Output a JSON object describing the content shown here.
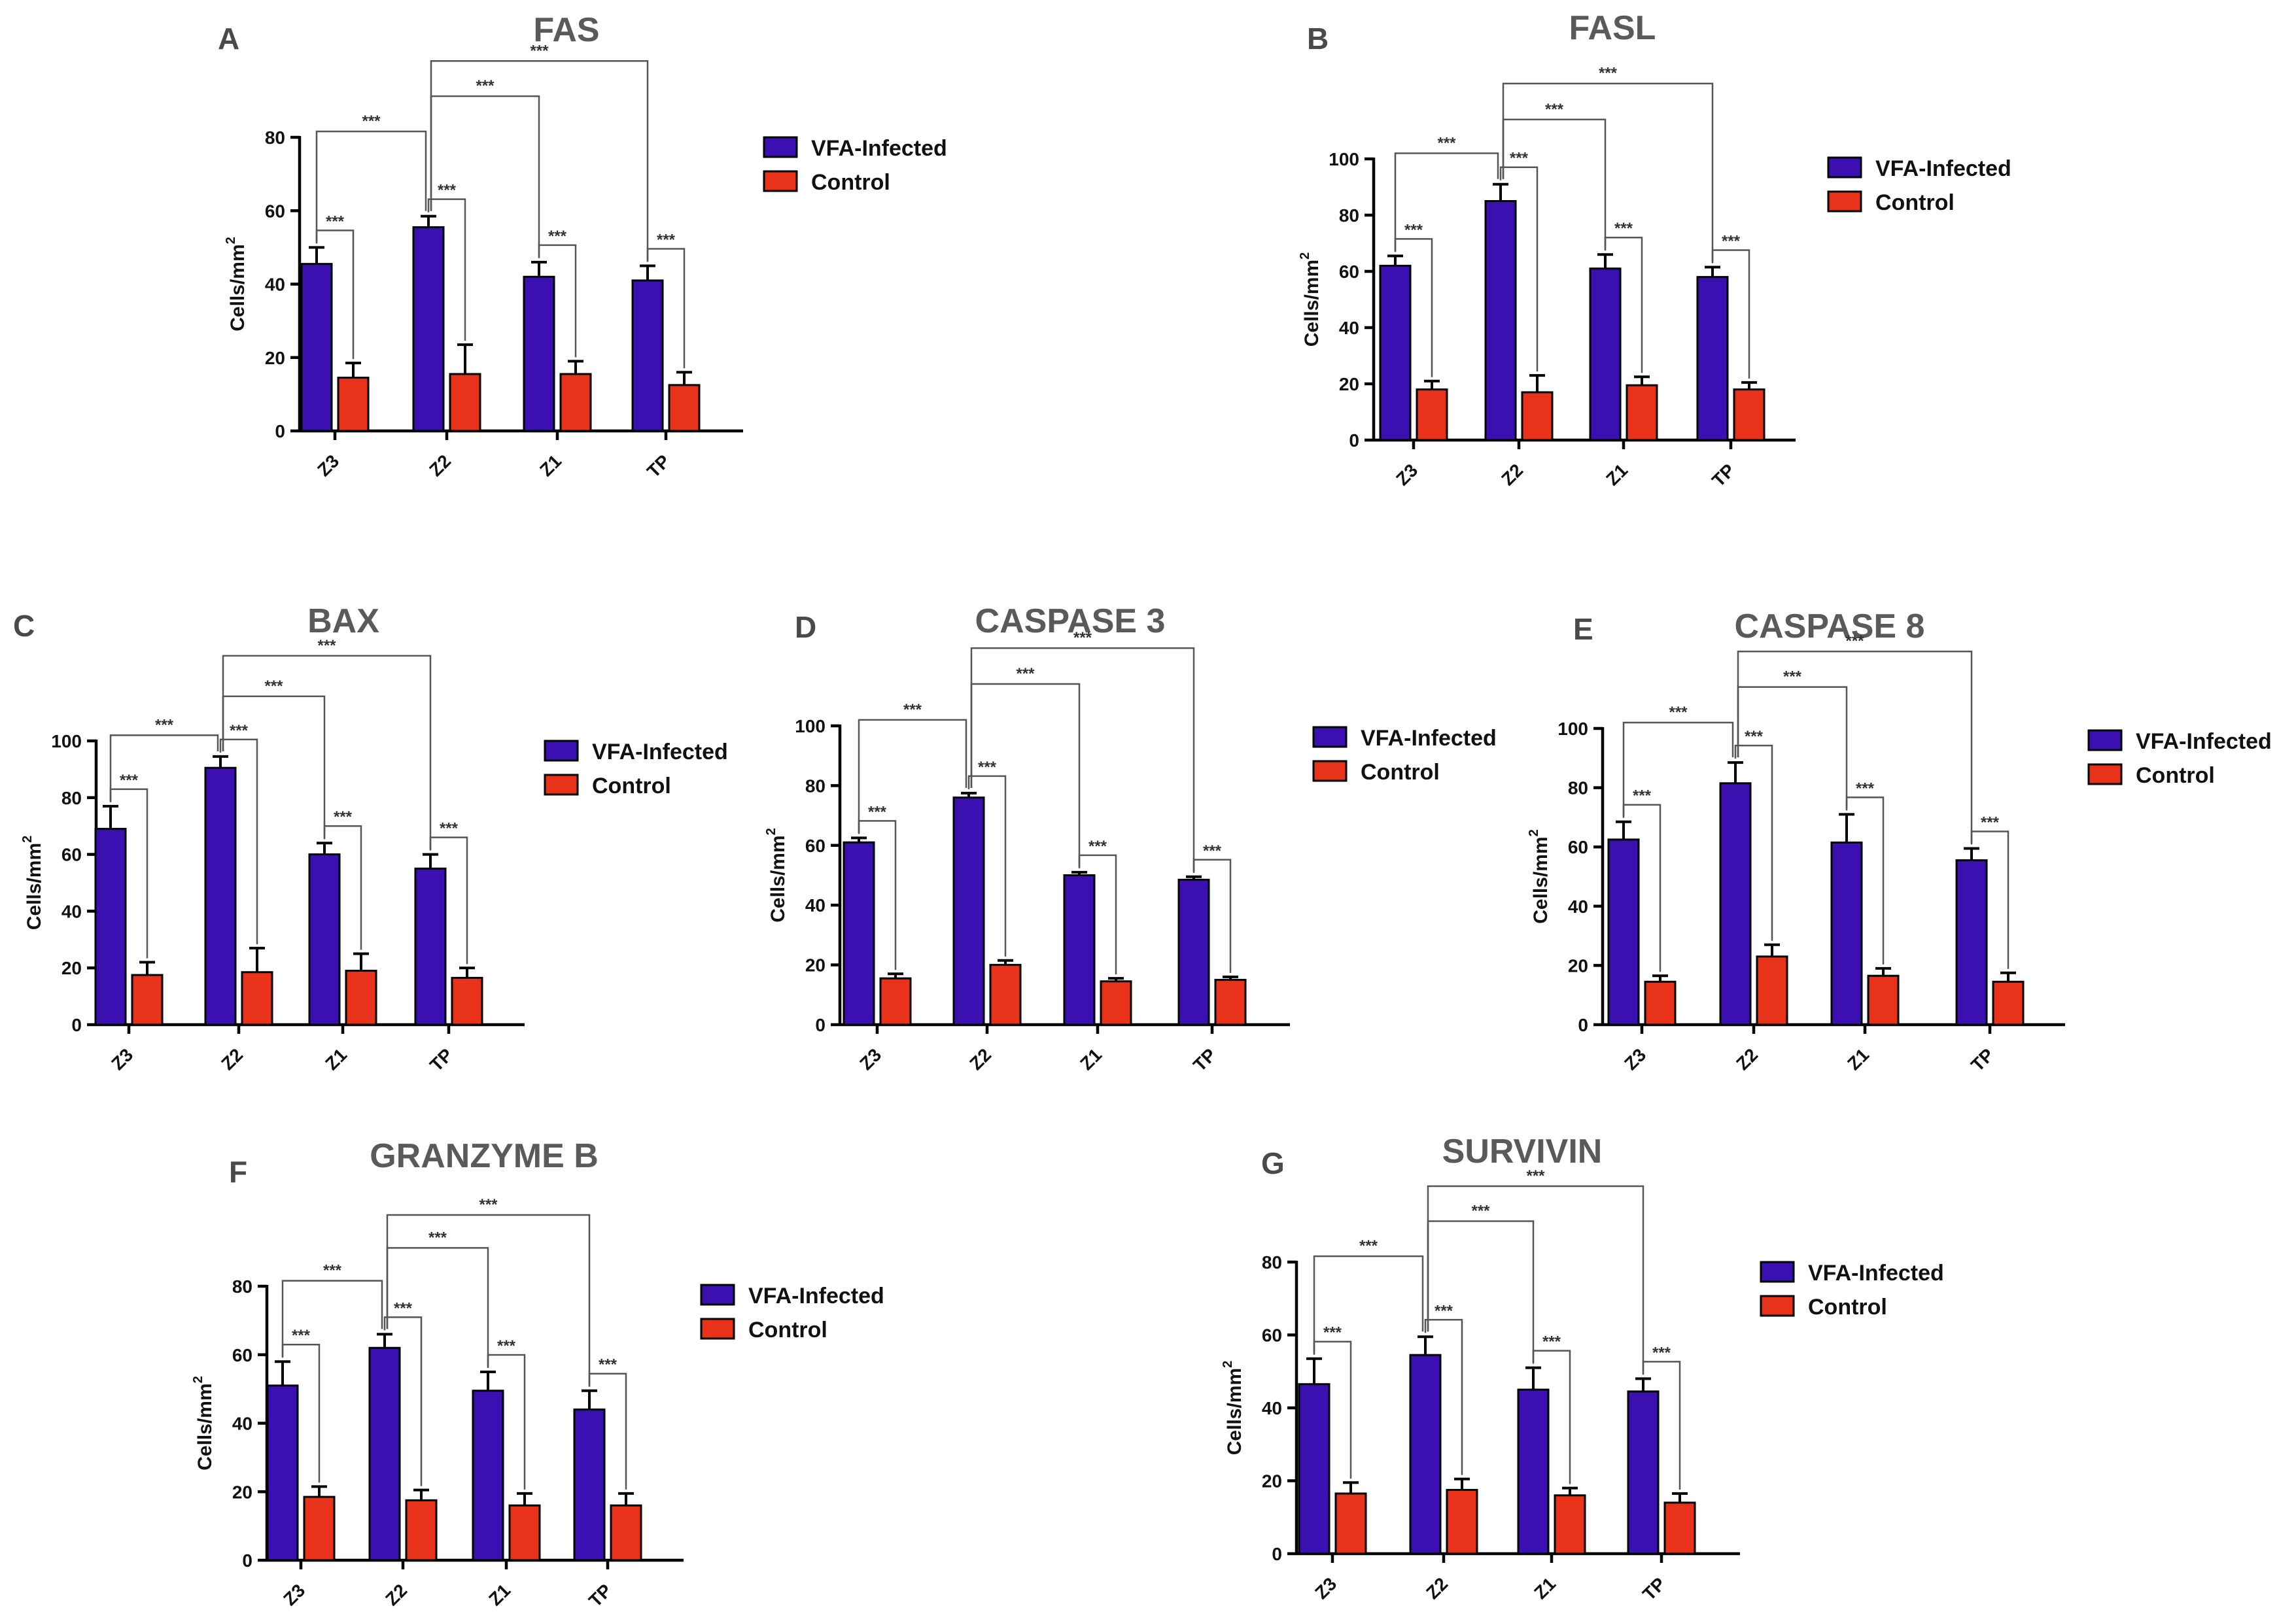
{
  "colors": {
    "infected": "#3b0fb0",
    "control": "#e8321a"
  },
  "legend": {
    "infected_label": "VFA-Infected",
    "control_label": "Control"
  },
  "chart_data": [
    {
      "id": "A",
      "letter": "A",
      "type": "bar",
      "title": "FAS",
      "ylabel": "Cells/mm",
      "ylabel_sup": "2",
      "ylim": [
        0,
        80
      ],
      "yticks": [
        0,
        20,
        40,
        60,
        80
      ],
      "categories": [
        "Z3",
        "Z2",
        "Z1",
        "TP"
      ],
      "series": [
        {
          "name": "VFA-Infected",
          "values": [
            45.5,
            55.5,
            42,
            41
          ],
          "errors": [
            4.5,
            3,
            4,
            4
          ]
        },
        {
          "name": "Control",
          "values": [
            14.5,
            15.5,
            15.5,
            12.5
          ],
          "errors": [
            4,
            8,
            3.5,
            3.5
          ]
        }
      ],
      "sig_pairs": [
        {
          "from": "Z3",
          "to": "Z2",
          "label": "***"
        },
        {
          "from": "Z2",
          "to": "Z1",
          "label": "***"
        },
        {
          "from": "Z2",
          "to": "TP",
          "label": "***"
        }
      ],
      "within_label": "***"
    },
    {
      "id": "B",
      "letter": "B",
      "type": "bar",
      "title": "FASL",
      "ylabel": "Cells/mm",
      "ylabel_sup": "2",
      "ylim": [
        0,
        100
      ],
      "yticks": [
        0,
        20,
        40,
        60,
        80,
        100
      ],
      "categories": [
        "Z3",
        "Z2",
        "Z1",
        "TP"
      ],
      "series": [
        {
          "name": "VFA-Infected",
          "values": [
            62,
            85,
            61,
            58
          ],
          "errors": [
            3.5,
            6,
            5,
            3.5
          ]
        },
        {
          "name": "Control",
          "values": [
            18,
            17,
            19.5,
            18
          ],
          "errors": [
            3,
            6,
            3,
            2.5
          ]
        }
      ],
      "sig_pairs": [
        {
          "from": "Z3",
          "to": "Z2",
          "label": "***"
        },
        {
          "from": "Z2",
          "to": "Z1",
          "label": "***"
        },
        {
          "from": "Z2",
          "to": "TP",
          "label": "***"
        }
      ],
      "within_label": "***"
    },
    {
      "id": "C",
      "letter": "C",
      "type": "bar",
      "title": "BAX",
      "ylabel": "Cells/mm",
      "ylabel_sup": "2",
      "ylim": [
        0,
        100
      ],
      "yticks": [
        0,
        20,
        40,
        60,
        80,
        100
      ],
      "categories": [
        "Z3",
        "Z2",
        "Z1",
        "TP"
      ],
      "series": [
        {
          "name": "VFA-Infected",
          "values": [
            69,
            90.5,
            60,
            55
          ],
          "errors": [
            8,
            4,
            4,
            5
          ]
        },
        {
          "name": "Control",
          "values": [
            17.5,
            18.5,
            19,
            16.5
          ],
          "errors": [
            4.5,
            8.5,
            6,
            3.5
          ]
        }
      ],
      "sig_pairs": [
        {
          "from": "Z3",
          "to": "Z2",
          "label": "***"
        },
        {
          "from": "Z2",
          "to": "Z1",
          "label": "***"
        },
        {
          "from": "Z2",
          "to": "TP",
          "label": "***"
        }
      ],
      "within_label": "***"
    },
    {
      "id": "D",
      "letter": "D",
      "type": "bar",
      "title": "CASPASE 3",
      "ylabel": "Cells/mm",
      "ylabel_sup": "2",
      "ylim": [
        0,
        100
      ],
      "yticks": [
        0,
        20,
        40,
        60,
        80,
        100
      ],
      "categories": [
        "Z3",
        "Z2",
        "Z1",
        "TP"
      ],
      "series": [
        {
          "name": "VFA-Infected",
          "values": [
            61,
            76,
            50,
            48.5
          ],
          "errors": [
            1.5,
            1.5,
            1,
            1
          ]
        },
        {
          "name": "Control",
          "values": [
            15.5,
            20,
            14.5,
            15
          ],
          "errors": [
            1.5,
            1.5,
            1,
            1
          ]
        }
      ],
      "sig_pairs": [
        {
          "from": "Z3",
          "to": "Z2",
          "label": "***"
        },
        {
          "from": "Z2",
          "to": "Z1",
          "label": "***"
        },
        {
          "from": "Z2",
          "to": "TP",
          "label": "***"
        }
      ],
      "within_label": "***"
    },
    {
      "id": "E",
      "letter": "E",
      "type": "bar",
      "title": "CASPASE 8",
      "ylabel": "Cells/mm",
      "ylabel_sup": "2",
      "ylim": [
        0,
        100
      ],
      "yticks": [
        0,
        20,
        40,
        60,
        80,
        100
      ],
      "categories": [
        "Z3",
        "Z2",
        "Z1",
        "TP"
      ],
      "series": [
        {
          "name": "VFA-Infected",
          "values": [
            62.5,
            81.5,
            61.5,
            55.5
          ],
          "errors": [
            6,
            7,
            9.5,
            4
          ]
        },
        {
          "name": "Control",
          "values": [
            14.5,
            23,
            16.5,
            14.5
          ],
          "errors": [
            2,
            4,
            2.5,
            3
          ]
        }
      ],
      "sig_pairs": [
        {
          "from": "Z3",
          "to": "Z2",
          "label": "***"
        },
        {
          "from": "Z2",
          "to": "Z1",
          "label": "***"
        },
        {
          "from": "Z2",
          "to": "TP",
          "label": "***"
        }
      ],
      "within_label": "***"
    },
    {
      "id": "F",
      "letter": "F",
      "type": "bar",
      "title": "GRANZYME B",
      "ylabel": "Cells/mm",
      "ylabel_sup": "2",
      "ylim": [
        0,
        80
      ],
      "yticks": [
        0,
        20,
        40,
        60,
        80
      ],
      "categories": [
        "Z3",
        "Z2",
        "Z1",
        "TP"
      ],
      "series": [
        {
          "name": "VFA-Infected",
          "values": [
            51,
            62,
            49.5,
            44
          ],
          "errors": [
            7,
            4,
            5.5,
            5.5
          ]
        },
        {
          "name": "Control",
          "values": [
            18.5,
            17.5,
            16,
            16
          ],
          "errors": [
            3,
            3,
            3.5,
            3.5
          ]
        }
      ],
      "sig_pairs": [
        {
          "from": "Z3",
          "to": "Z2",
          "label": "***"
        },
        {
          "from": "Z2",
          "to": "Z1",
          "label": "***"
        },
        {
          "from": "Z2",
          "to": "TP",
          "label": "***"
        }
      ],
      "within_label": "***"
    },
    {
      "id": "G",
      "letter": "G",
      "type": "bar",
      "title": "SURVIVIN",
      "ylabel": "Cells/mm",
      "ylabel_sup": "2",
      "ylim": [
        0,
        80
      ],
      "yticks": [
        0,
        20,
        40,
        60,
        80
      ],
      "categories": [
        "Z3",
        "Z2",
        "Z1",
        "TP"
      ],
      "series": [
        {
          "name": "VFA-Infected",
          "values": [
            46.5,
            54.5,
            45,
            44.5
          ],
          "errors": [
            7,
            5,
            6,
            3.5
          ]
        },
        {
          "name": "Control",
          "values": [
            16.5,
            17.5,
            16,
            14
          ],
          "errors": [
            3,
            3,
            2,
            2.5
          ]
        }
      ],
      "sig_pairs": [
        {
          "from": "Z3",
          "to": "Z2",
          "label": "***"
        },
        {
          "from": "Z2",
          "to": "Z1",
          "label": "***"
        },
        {
          "from": "Z2",
          "to": "TP",
          "label": "***"
        }
      ],
      "within_label": "***"
    }
  ]
}
